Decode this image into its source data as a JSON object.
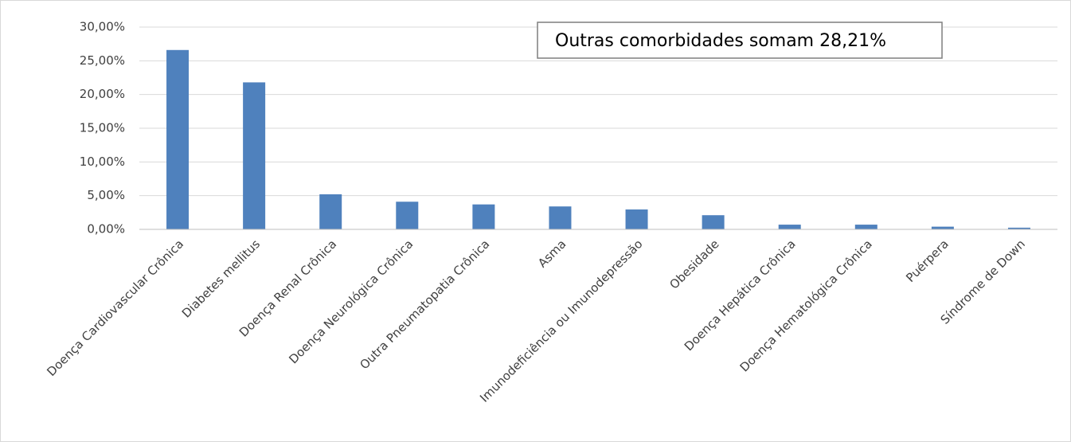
{
  "chart_data": {
    "type": "bar",
    "annotation": "Outras comorbidades somam 28,21%",
    "categories": [
      "Doença Cardiovascular Crônica",
      "Diabetes mellitus",
      "Doença Renal Crônica",
      "Doença Neurológica Crônica",
      "Outra Pneumatopatia Crônica",
      "Asma",
      "Imunodeficiência ou Imunodepressão",
      "Obesidade",
      "Doença Hepática Crônica",
      "Doença Hematológica Crônica",
      "Puérpera",
      "Síndrome de Down"
    ],
    "values": [
      26.6,
      21.8,
      5.2,
      4.1,
      3.7,
      3.4,
      2.95,
      2.1,
      0.7,
      0.7,
      0.4,
      0.25
    ],
    "color": "#4f81bd",
    "ylim": [
      0,
      30
    ],
    "yticks": [
      {
        "value": 0,
        "label": "0,00%"
      },
      {
        "value": 5,
        "label": "5,00%"
      },
      {
        "value": 10,
        "label": "10,00%"
      },
      {
        "value": 15,
        "label": "15,00%"
      },
      {
        "value": 20,
        "label": "20,00%"
      },
      {
        "value": 25,
        "label": "25,00%"
      },
      {
        "value": 30,
        "label": "30,00%"
      }
    ],
    "grid": true
  }
}
